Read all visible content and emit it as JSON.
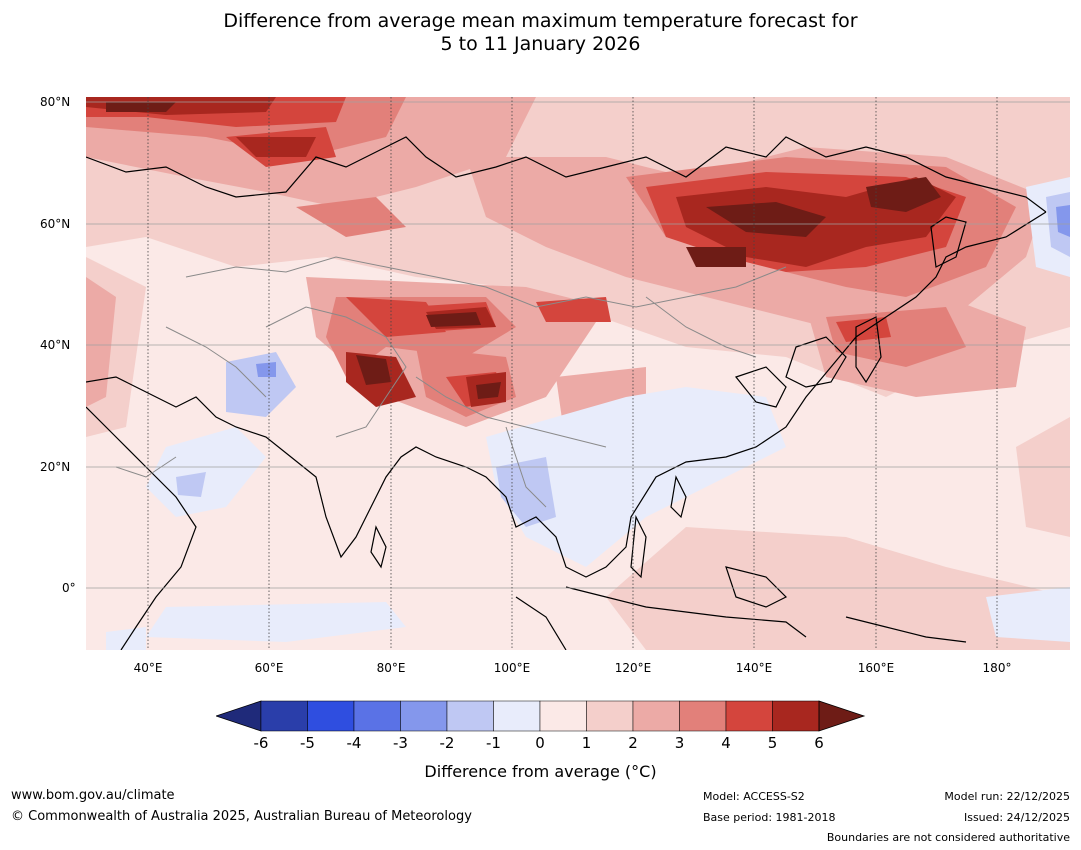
{
  "title": {
    "line1": "Difference from average mean maximum temperature forecast for",
    "line2": "5 to 11 January 2026"
  },
  "map": {
    "lat_labels": [
      "80°N",
      "60°N",
      "40°N",
      "20°N",
      "0°"
    ],
    "lon_labels": [
      "40°E",
      "60°E",
      "80°E",
      "100°E",
      "120°E",
      "140°E",
      "160°E",
      "180°"
    ]
  },
  "colorbar": {
    "ticks": [
      "-6",
      "-5",
      "-4",
      "-3",
      "-2",
      "-1",
      "0",
      "1",
      "2",
      "3",
      "4",
      "5",
      "6"
    ],
    "colors": [
      "#1f2a7a",
      "#2a3eaa",
      "#2f4ee0",
      "#5a72e6",
      "#8497ec",
      "#bfc8f3",
      "#e8ecfb",
      "#fbe9e7",
      "#f4cfcb",
      "#ecaaa6",
      "#e2807a",
      "#d4453d",
      "#a8271f",
      "#6e1c16"
    ],
    "label": "Difference from average (°C)"
  },
  "footer": {
    "website": "www.bom.gov.au/climate",
    "copyright": "© Commonwealth of Australia 2025, Australian Bureau of Meteorology",
    "model": "Model: ACCESS-S2",
    "base_period": "Base period: 1981-2018",
    "model_run": "Model run: 22/12/2025",
    "issued": "Issued: 24/12/2025",
    "disclaimer": "Boundaries are not considered authoritative"
  }
}
